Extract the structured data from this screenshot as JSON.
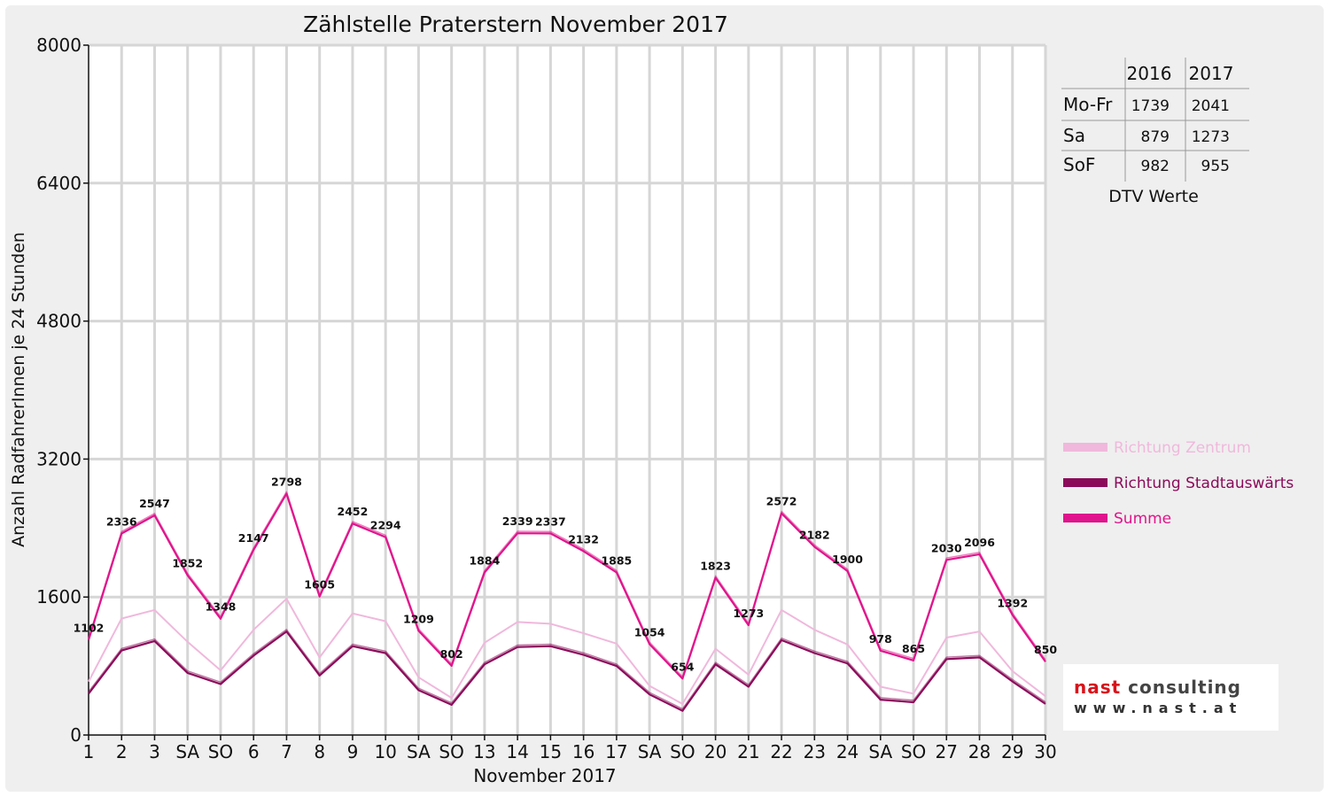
{
  "chart_data": {
    "type": "line",
    "title": "Zählstelle Praterstern November 2017",
    "xlabel": "November 2017",
    "ylabel": "Anzahl RadfahrerInnen je 24 Stunden",
    "ylim": [
      0,
      8000
    ],
    "yticks": [
      "0",
      "1600",
      "3200",
      "4800",
      "6400",
      "8000"
    ],
    "categories": [
      "1",
      "2",
      "3",
      "SA",
      "SO",
      "6",
      "7",
      "8",
      "9",
      "10",
      "SA",
      "SO",
      "13",
      "14",
      "15",
      "16",
      "17",
      "SA",
      "SO",
      "20",
      "21",
      "22",
      "23",
      "24",
      "SA",
      "SO",
      "27",
      "28",
      "29",
      "30"
    ],
    "category_colors": [
      "#ff0000",
      "#111111",
      "#111111",
      "#111111",
      "#ff0000",
      "#111111",
      "#111111",
      "#111111",
      "#111111",
      "#111111",
      "#111111",
      "#ff0000",
      "#111111",
      "#111111",
      "#111111",
      "#111111",
      "#111111",
      "#111111",
      "#ff0000",
      "#111111",
      "#111111",
      "#111111",
      "#111111",
      "#111111",
      "#111111",
      "#ff0000",
      "#111111",
      "#111111",
      "#111111",
      "#111111"
    ],
    "grid": true,
    "legend_position": "right",
    "series": [
      {
        "name": "Richtung Zentrum",
        "color": "#f0b8dc",
        "values": [
          620,
          1350,
          1450,
          1080,
          750,
          1220,
          1580,
          900,
          1410,
          1320,
          670,
          430,
          1070,
          1310,
          1290,
          1180,
          1060,
          570,
          360,
          1000,
          700,
          1450,
          1220,
          1050,
          560,
          480,
          1130,
          1200,
          740,
          450
        ]
      },
      {
        "name": "Richtung Stadtauswärts",
        "color": "#8b0b5a",
        "values": [
          480,
          980,
          1090,
          720,
          590,
          920,
          1200,
          690,
          1030,
          950,
          520,
          350,
          820,
          1020,
          1030,
          930,
          800,
          470,
          280,
          820,
          560,
          1100,
          950,
          830,
          410,
          380,
          880,
          900,
          620,
          360
        ]
      },
      {
        "name": "Summe",
        "color": "#e0148c",
        "values": [
          1102,
          2336,
          2547,
          1852,
          1348,
          2147,
          2798,
          1605,
          2452,
          2294,
          1209,
          802,
          1884,
          2339,
          2337,
          2132,
          1885,
          1054,
          654,
          1823,
          1273,
          2572,
          2182,
          1900,
          978,
          865,
          2030,
          2096,
          1392,
          850
        ]
      }
    ],
    "data_labels": [
      "1102",
      "2336",
      "2547",
      "1852",
      "1348",
      "2147",
      "2798",
      "1605",
      "2452",
      "2294",
      "1209",
      "802",
      "1884",
      "2339",
      "2337",
      "2132",
      "1885",
      "1054",
      "654",
      "1823",
      "1273",
      "2572",
      "2182",
      "1900",
      "978",
      "865",
      "2030",
      "2096",
      "1392",
      "850"
    ]
  },
  "dtv_table": {
    "headers": [
      "",
      "2016",
      "2017"
    ],
    "rows": [
      {
        "label": "Mo-Fr",
        "v2016": "1739",
        "v2017": "2041"
      },
      {
        "label": "Sa",
        "v2016": "879",
        "v2017": "1273"
      },
      {
        "label": "SoF",
        "v2016": "982",
        "v2017": "955"
      }
    ],
    "caption": "DTV Werte"
  },
  "logo": {
    "brand_red": "nast",
    "brand_gray": "consulting",
    "url_text": "www.nast.at",
    "red": "#d8121a"
  }
}
